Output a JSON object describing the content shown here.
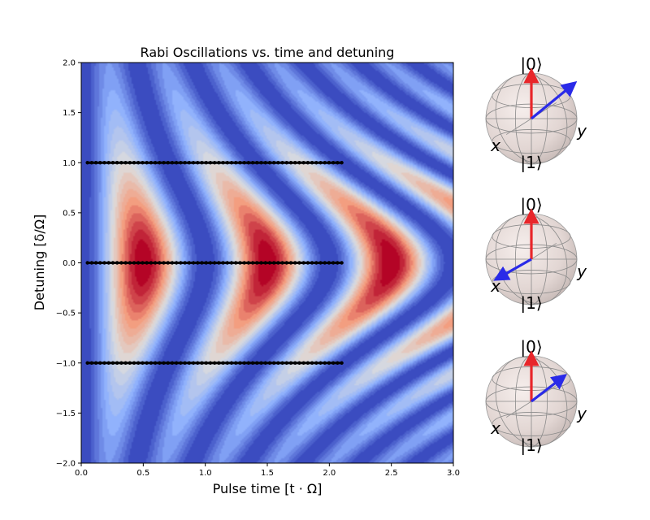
{
  "chart_data": [
    {
      "type": "heatmap",
      "subtype": "filled-contour",
      "title": "Rabi Oscillations vs. time and detuning",
      "xlabel": "Pulse time [t · Ω]",
      "ylabel": "Detuning [δ/Ω]",
      "xlim": [
        0.0,
        3.0
      ],
      "ylim": [
        -2.0,
        2.0
      ],
      "xticks": [
        "0.0",
        "0.5",
        "1.0",
        "1.5",
        "2.0",
        "2.5",
        "3.0"
      ],
      "yticks": [
        "−2.0",
        "−1.5",
        "−1.0",
        "−0.5",
        "0.0",
        "0.5",
        "1.0",
        "1.5",
        "2.0"
      ],
      "colormap": {
        "name": "coolwarm",
        "low": "#3b4cc0",
        "mid": "#dddddd",
        "high": "#b40426"
      },
      "function": "P1 = sin^2(pi*t*sqrt(1+delta^2)) / (1+delta^2)",
      "grid": false,
      "trajectory_lines": [
        {
          "detuning": 1.0,
          "t_start": 0.05,
          "t_end": 2.1,
          "color": "#000000"
        },
        {
          "detuning": 0.0,
          "t_start": 0.05,
          "t_end": 2.1,
          "color": "#000000"
        },
        {
          "detuning": -1.0,
          "t_start": 0.05,
          "t_end": 2.1,
          "color": "#000000"
        }
      ]
    },
    {
      "type": "bloch-sphere",
      "detuning": 1.0,
      "labels": {
        "top": "|0⟩",
        "bottom": "|1⟩",
        "x": "x",
        "y": "y"
      },
      "vectors": [
        {
          "name": "field",
          "color": "#e8262a",
          "dir": [
            0,
            0,
            1
          ]
        },
        {
          "name": "state",
          "color": "#2a2ae8",
          "dir": [
            -0.55,
            0.6,
            0.55
          ]
        }
      ]
    },
    {
      "type": "bloch-sphere",
      "detuning": 0.0,
      "labels": {
        "top": "|0⟩",
        "bottom": "|1⟩",
        "x": "x",
        "y": "y"
      },
      "vectors": [
        {
          "name": "field",
          "color": "#e8262a",
          "dir": [
            0,
            0,
            1
          ]
        },
        {
          "name": "state",
          "color": "#2a2ae8",
          "dir": [
            0.3,
            -0.55,
            -0.3
          ]
        }
      ]
    },
    {
      "type": "bloch-sphere",
      "detuning": -1.0,
      "labels": {
        "top": "|0⟩",
        "bottom": "|1⟩",
        "x": "x",
        "y": "y"
      },
      "vectors": [
        {
          "name": "field",
          "color": "#e8262a",
          "dir": [
            0,
            0,
            1
          ]
        },
        {
          "name": "state",
          "color": "#2a2ae8",
          "dir": [
            0.2,
            0.8,
            0.6
          ]
        }
      ]
    }
  ]
}
